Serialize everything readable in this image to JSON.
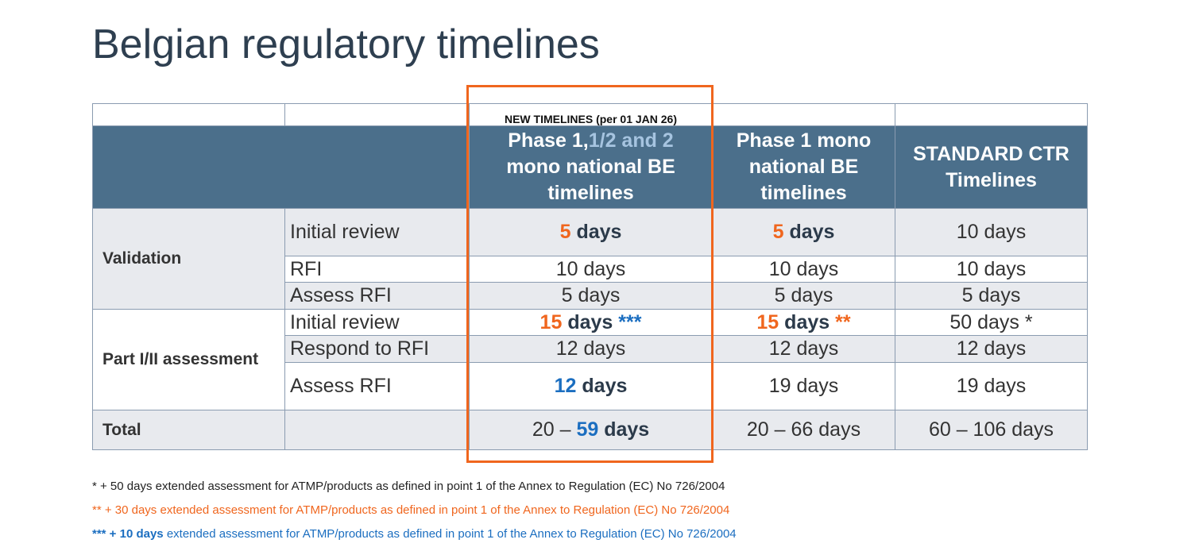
{
  "title": "Belgian regulatory timelines",
  "table": {
    "top_note": "NEW TIMELINES (per 01 JAN 26)",
    "headers": [
      [
        "Phase 1,",
        "1/2 and 2",
        "mono national BE timelines"
      ],
      [
        "Phase 1 mono national BE timelines"
      ],
      [
        "STANDARD CTR Timelines"
      ]
    ],
    "groups": [
      {
        "label": "Validation",
        "rows": [
          {
            "label": "Initial review",
            "cells": [
              [
                "5",
                "days"
              ],
              [
                "5",
                "days"
              ],
              [
                "10 days"
              ]
            ]
          },
          {
            "label": "RFI",
            "cells": [
              [
                "10 days"
              ],
              [
                "10 days"
              ],
              [
                "10 days"
              ]
            ]
          },
          {
            "label": "Assess RFI",
            "cells": [
              [
                "5 days"
              ],
              [
                "5 days"
              ],
              [
                "5 days"
              ]
            ]
          }
        ]
      },
      {
        "label": "Part I/II assessment",
        "rows": [
          {
            "label": "Initial review",
            "cells": [
              [
                "15",
                "days",
                "***"
              ],
              [
                "15",
                "days",
                "**"
              ],
              [
                "50 days *"
              ]
            ]
          },
          {
            "label": "Respond to RFI",
            "cells": [
              [
                "12 days"
              ],
              [
                "12 days"
              ],
              [
                "12 days"
              ]
            ]
          },
          {
            "label": "Assess RFI",
            "cells": [
              [
                "12",
                "days"
              ],
              [
                "19 days"
              ],
              [
                "19 days"
              ]
            ]
          }
        ]
      }
    ],
    "total": {
      "label": "Total",
      "cells": [
        [
          "20 –",
          "59",
          "days"
        ],
        [
          "20 – 66 days"
        ],
        [
          "60 – 106 days"
        ]
      ]
    }
  },
  "footnotes": [
    [
      "* + 50 days extended assessment for ATMP/products as defined in point 1 of the Annex to Regulation (EC) No 726/2004"
    ],
    [
      "** + 30 days extended assessment for ATMP/products as defined in point 1 of the Annex to Regulation (EC) No 726/2004"
    ],
    [
      "*** + 10 days",
      "extended assessment for ATMP/products as defined in point 1 of the Annex to Regulation (EC) No 726/2004"
    ]
  ]
}
